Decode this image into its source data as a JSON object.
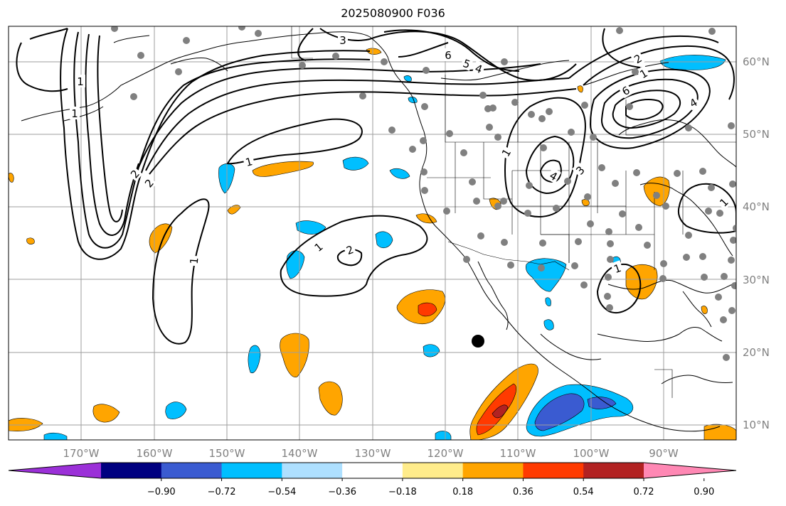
{
  "title": "2025080900 F036",
  "map": {
    "lon_ticks": [
      "170°W",
      "160°W",
      "150°W",
      "140°W",
      "130°W",
      "120°W",
      "110°W",
      "100°W",
      "90°W"
    ],
    "lat_ticks": [
      "60°N",
      "50°N",
      "40°N",
      "30°N",
      "20°N",
      "10°N"
    ],
    "gridline_color": "#9e9e9e",
    "coast_color": "#000000",
    "station_marker_color": "#808080",
    "highlight_marker_color": "#000000",
    "contour_labels": [
      "3",
      "6",
      "5",
      "4",
      "1",
      "2",
      "1",
      "2",
      "1",
      "1",
      "1",
      "2",
      "2",
      "6",
      "4",
      "3",
      "4",
      "1",
      "1",
      "1",
      "1"
    ]
  },
  "colorbar": {
    "tick_labels": [
      "−0.90",
      "−0.72",
      "−0.54",
      "−0.36",
      "−0.18",
      "0.18",
      "0.36",
      "0.54",
      "0.72",
      "0.90"
    ],
    "colors": [
      "#9b30d8",
      "#000080",
      "#3a5bd1",
      "#00bfff",
      "#aee0ff",
      "#ffffff",
      "#ffec8b",
      "#ffa500",
      "#ff3a00",
      "#b22222",
      "#ff88b4"
    ],
    "extend": "both"
  }
}
